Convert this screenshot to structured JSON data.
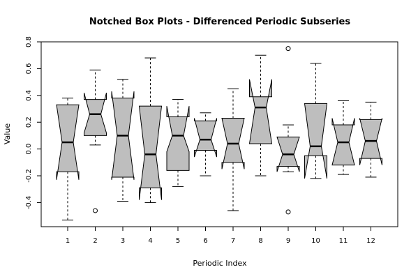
{
  "chart_data": {
    "type": "notched-boxplot",
    "title": "Notched Box Plots - Differenced Periodic Subseries",
    "xlabel": "Periodic Index",
    "ylabel": "Value",
    "categories": [
      "1",
      "2",
      "3",
      "4",
      "5",
      "6",
      "7",
      "8",
      "9",
      "10",
      "11",
      "12"
    ],
    "ylim": [
      -0.58,
      0.8
    ],
    "y_ticks": [
      -0.4,
      -0.2,
      0.0,
      0.2,
      0.4,
      0.6,
      0.8
    ],
    "y_tick_labels": [
      "-0.4",
      "-0.2",
      "0.0",
      "0.2",
      "0.4",
      "0.6",
      "0.8"
    ],
    "fill_color": "#bebebe",
    "boxes": [
      {
        "category": "1",
        "whisker_low": -0.53,
        "q1": -0.17,
        "median": 0.05,
        "q3": 0.33,
        "whisker_high": 0.38,
        "notch_low": -0.23,
        "notch_high": 0.33,
        "outliers": []
      },
      {
        "category": "2",
        "whisker_low": 0.03,
        "q1": 0.1,
        "median": 0.26,
        "q3": 0.37,
        "whisker_high": 0.59,
        "notch_low": 0.12,
        "notch_high": 0.42,
        "outliers": [
          -0.46
        ]
      },
      {
        "category": "3",
        "whisker_low": -0.39,
        "q1": -0.21,
        "median": 0.1,
        "q3": 0.38,
        "whisker_high": 0.52,
        "notch_low": -0.23,
        "notch_high": 0.43,
        "outliers": []
      },
      {
        "category": "4",
        "whisker_low": -0.4,
        "q1": -0.29,
        "median": -0.04,
        "q3": 0.32,
        "whisker_high": 0.68,
        "notch_low": -0.38,
        "notch_high": 0.32,
        "outliers": []
      },
      {
        "category": "5",
        "whisker_low": -0.28,
        "q1": -0.16,
        "median": 0.1,
        "q3": 0.24,
        "whisker_high": 0.37,
        "notch_low": -0.02,
        "notch_high": 0.32,
        "outliers": []
      },
      {
        "category": "6",
        "whisker_low": -0.2,
        "q1": -0.01,
        "median": 0.07,
        "q3": 0.21,
        "whisker_high": 0.27,
        "notch_low": -0.06,
        "notch_high": 0.23,
        "outliers": []
      },
      {
        "category": "7",
        "whisker_low": -0.46,
        "q1": -0.1,
        "median": 0.04,
        "q3": 0.23,
        "whisker_high": 0.45,
        "notch_low": -0.15,
        "notch_high": 0.23,
        "outliers": []
      },
      {
        "category": "8",
        "whisker_low": -0.2,
        "q1": 0.04,
        "median": 0.31,
        "q3": 0.39,
        "whisker_high": 0.7,
        "notch_low": 0.04,
        "notch_high": 0.52,
        "outliers": []
      },
      {
        "category": "9",
        "whisker_low": -0.17,
        "q1": -0.13,
        "median": -0.04,
        "q3": 0.09,
        "whisker_high": 0.18,
        "notch_low": -0.17,
        "notch_high": 0.09,
        "outliers": [
          0.75,
          -0.47
        ]
      },
      {
        "category": "10",
        "whisker_low": -0.22,
        "q1": -0.05,
        "median": 0.02,
        "q3": 0.34,
        "whisker_high": 0.64,
        "notch_low": -0.22,
        "notch_high": 0.34,
        "outliers": []
      },
      {
        "category": "11",
        "whisker_low": -0.19,
        "q1": -0.12,
        "median": 0.05,
        "q3": 0.18,
        "whisker_high": 0.36,
        "notch_low": -0.12,
        "notch_high": 0.23,
        "outliers": []
      },
      {
        "category": "12",
        "whisker_low": -0.21,
        "q1": -0.07,
        "median": 0.06,
        "q3": 0.22,
        "whisker_high": 0.35,
        "notch_low": -0.12,
        "notch_high": 0.23,
        "outliers": []
      }
    ]
  }
}
